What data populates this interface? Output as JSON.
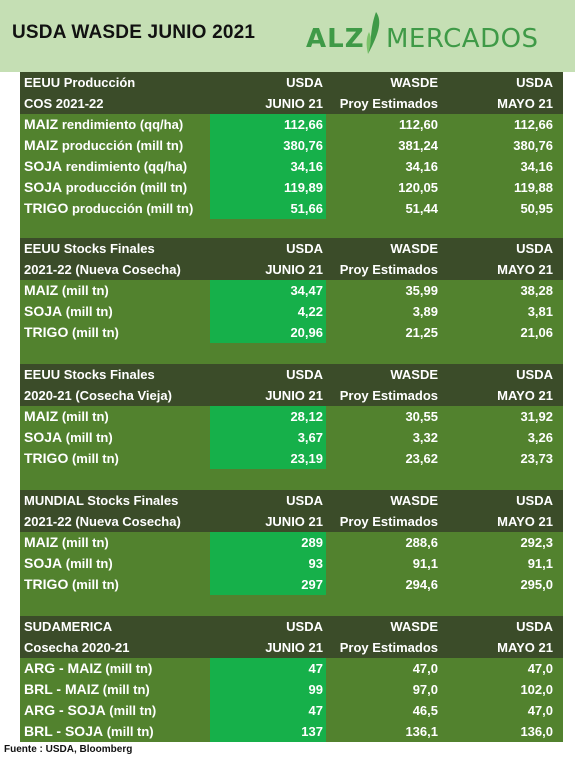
{
  "title": "USDA WASDE JUNIO 2021",
  "logo": {
    "left": "ALZ",
    "right": "MERCADOS"
  },
  "colors": {
    "header_bg": "#c5dfb4",
    "panel_bg": "#52822e",
    "section_header_bg": "#3b4c29",
    "highlight": "#16b04a",
    "brand_green": "#3f9a47"
  },
  "sections": [
    {
      "header1": [
        "EEUU Producción",
        "USDA",
        "WASDE",
        "USDA"
      ],
      "header2": [
        "COS 2021-22",
        "JUNIO 21",
        "Proy Estimados",
        "MAYO 21"
      ],
      "rows": [
        {
          "strong": "MAIZ",
          "rest": " rendimiento (qq/ha)",
          "usda_jun": "112,66",
          "wasde": "112,60",
          "usda_may": "112,66"
        },
        {
          "strong": "MAIZ",
          "rest": " producción (mill tn)",
          "usda_jun": "380,76",
          "wasde": "381,24",
          "usda_may": "380,76"
        },
        {
          "strong": "SOJA",
          "rest": " rendimiento (qq/ha)",
          "usda_jun": "34,16",
          "wasde": "34,16",
          "usda_may": "34,16"
        },
        {
          "strong": "SOJA",
          "rest": " producción (mill tn)",
          "usda_jun": "119,89",
          "wasde": "120,05",
          "usda_may": "119,88"
        },
        {
          "strong": "TRIGO",
          "rest": " producción (mill tn)",
          "usda_jun": "51,66",
          "wasde": "51,44",
          "usda_may": "50,95"
        }
      ]
    },
    {
      "header1": [
        "EEUU Stocks Finales",
        "USDA",
        "WASDE",
        "USDA"
      ],
      "header2": [
        "2021-22 (Nueva Cosecha)",
        "JUNIO 21",
        "Proy Estimados",
        "MAYO 21"
      ],
      "rows": [
        {
          "strong": "MAIZ",
          "rest": " (mill tn)",
          "usda_jun": "34,47",
          "wasde": "35,99",
          "usda_may": "38,28"
        },
        {
          "strong": "SOJA",
          "rest": " (mill tn)",
          "usda_jun": "4,22",
          "wasde": "3,89",
          "usda_may": "3,81"
        },
        {
          "strong": "TRIGO",
          "rest": " (mill tn)",
          "usda_jun": "20,96",
          "wasde": "21,25",
          "usda_may": "21,06"
        }
      ]
    },
    {
      "header1": [
        "EEUU Stocks Finales",
        "USDA",
        "WASDE",
        "USDA"
      ],
      "header2": [
        "2020-21 (Cosecha Vieja)",
        "JUNIO 21",
        "Proy Estimados",
        "MAYO 21"
      ],
      "rows": [
        {
          "strong": "MAIZ",
          "rest": " (mill tn)",
          "usda_jun": "28,12",
          "wasde": "30,55",
          "usda_may": "31,92"
        },
        {
          "strong": "SOJA",
          "rest": " (mill tn)",
          "usda_jun": "3,67",
          "wasde": "3,32",
          "usda_may": "3,26"
        },
        {
          "strong": "TRIGO",
          "rest": " (mill tn)",
          "usda_jun": "23,19",
          "wasde": "23,62",
          "usda_may": "23,73"
        }
      ]
    },
    {
      "header1": [
        "MUNDIAL Stocks Finales",
        "USDA",
        "WASDE",
        "USDA"
      ],
      "header2": [
        "2021-22 (Nueva Cosecha)",
        "JUNIO 21",
        "Proy Estimados",
        "MAYO 21"
      ],
      "rows": [
        {
          "strong": "MAIZ",
          "rest": " (mill tn)",
          "usda_jun": "289",
          "wasde": "288,6",
          "usda_may": "292,3"
        },
        {
          "strong": "SOJA",
          "rest": " (mill tn)",
          "usda_jun": "93",
          "wasde": "91,1",
          "usda_may": "91,1"
        },
        {
          "strong": "TRIGO",
          "rest": " (mill tn)",
          "usda_jun": "297",
          "wasde": "294,6",
          "usda_may": "295,0"
        }
      ]
    },
    {
      "header1": [
        "SUDAMERICA",
        "USDA",
        "WASDE",
        "USDA"
      ],
      "header2": [
        "Cosecha 2020-21",
        "JUNIO 21",
        "Proy Estimados",
        "MAYO 21"
      ],
      "rows": [
        {
          "strong": "ARG - MAIZ",
          "rest": " (mill tn)",
          "usda_jun": "47",
          "wasde": "47,0",
          "usda_may": "47,0"
        },
        {
          "strong": "BRL - MAIZ",
          "rest": " (mill tn)",
          "usda_jun": "99",
          "wasde": "97,0",
          "usda_may": "102,0"
        },
        {
          "strong": "ARG - SOJA",
          "rest": " (mill tn)",
          "usda_jun": "47",
          "wasde": "46,5",
          "usda_may": "47,0"
        },
        {
          "strong": "BRL - SOJA",
          "rest": " (mill tn)",
          "usda_jun": "137",
          "wasde": "136,1",
          "usda_may": "136,0"
        }
      ]
    }
  ],
  "footer": "Fuente : USDA, Bloomberg"
}
